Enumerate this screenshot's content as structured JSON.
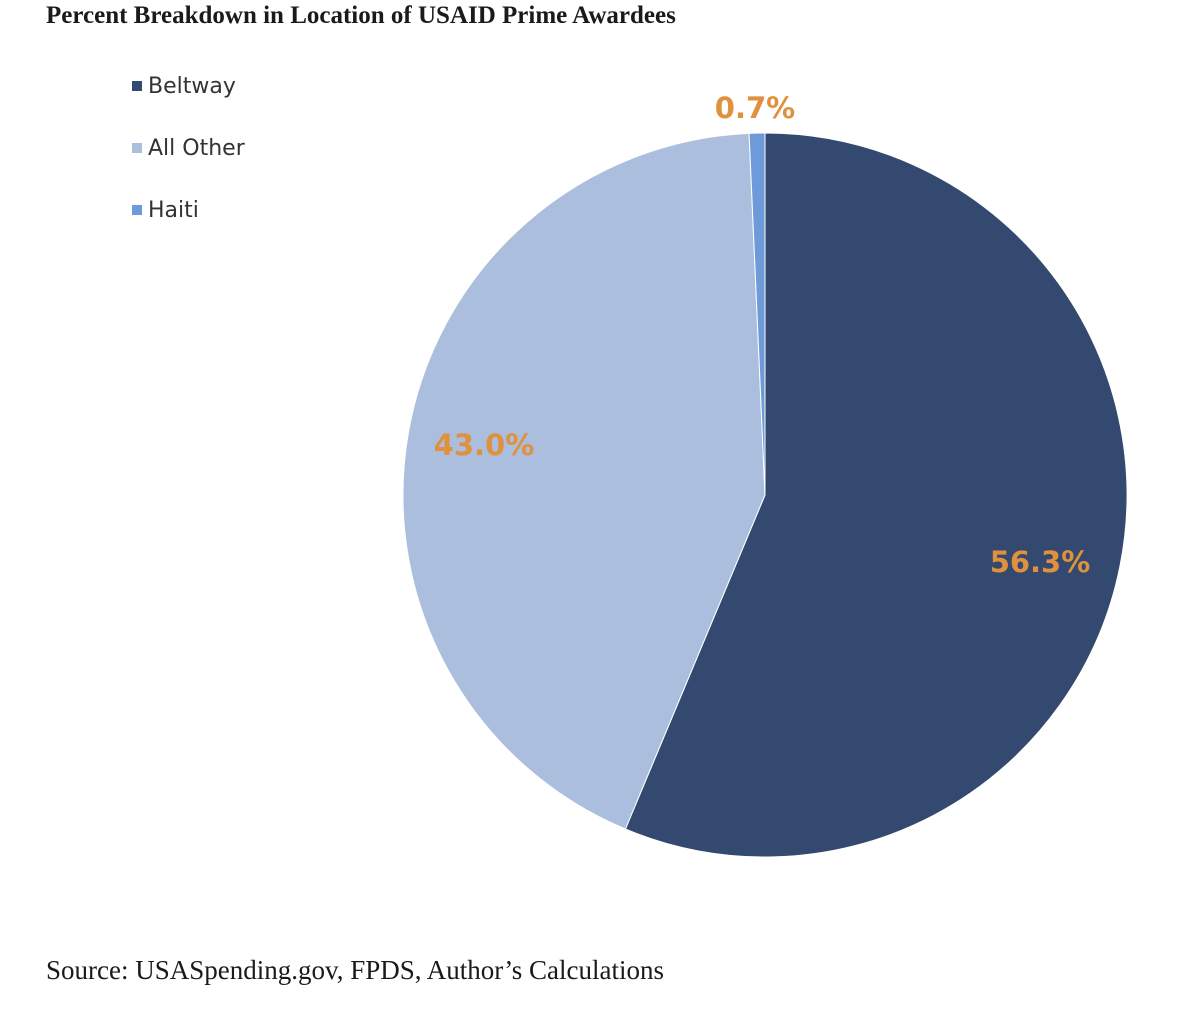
{
  "chart_data": {
    "type": "pie",
    "title": "Percent Breakdown in Location of USAID Prime Awardees",
    "slices": [
      {
        "name": "Beltway",
        "value": 56.3,
        "label": "56.3%",
        "color": "#33496f"
      },
      {
        "name": "All Other",
        "value": 43.0,
        "label": "43.0%",
        "color": "#abbedd"
      },
      {
        "name": "Haiti",
        "value": 0.7,
        "label": "0.7%",
        "color": "#6d9ad8"
      }
    ],
    "label_color": "#e0913d",
    "legend_position": "top-left",
    "source": "Source: USASpending.gov, FPDS, Author’s Calculations"
  }
}
